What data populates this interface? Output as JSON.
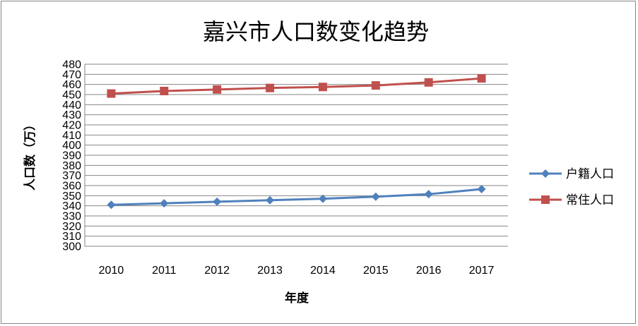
{
  "chart_data": {
    "type": "line",
    "title": "嘉兴市人口数变化趋势",
    "xlabel": "年度",
    "ylabel": "人口数（万）",
    "categories": [
      "2010",
      "2011",
      "2012",
      "2013",
      "2014",
      "2015",
      "2016",
      "2017"
    ],
    "ylim": [
      300,
      480
    ],
    "ytick_step": 10,
    "grid": true,
    "legend_position": "right",
    "series": [
      {
        "name": "户籍人口",
        "values": [
          341,
          342.5,
          344,
          345.5,
          347,
          349,
          351.5,
          356.5
        ],
        "color": "#4F81BD",
        "marker": "diamond"
      },
      {
        "name": "常住人口",
        "values": [
          451,
          453.5,
          455,
          456.5,
          457.5,
          459,
          462,
          466
        ],
        "color": "#C0504D",
        "marker": "square"
      }
    ]
  }
}
